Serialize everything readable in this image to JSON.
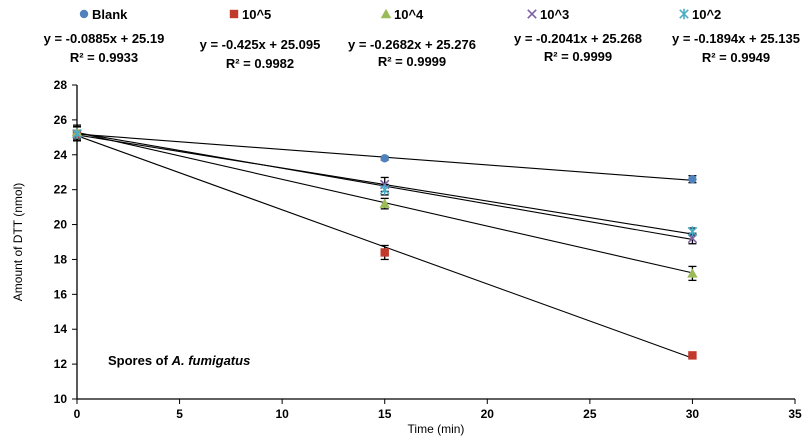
{
  "chart_data": {
    "type": "scatter",
    "xlabel": "Time (min)",
    "ylabel": "Amount of DTT (nmol)",
    "xlim": [
      0,
      35
    ],
    "ylim": [
      10,
      28
    ],
    "xticks": [
      "0",
      "5",
      "10",
      "15",
      "20",
      "25",
      "30",
      "35"
    ],
    "yticks": [
      "10",
      "12",
      "14",
      "16",
      "18",
      "20",
      "22",
      "24",
      "26",
      "28"
    ],
    "grid": false,
    "legend_position": "top",
    "annotation": {
      "prefix": "Spores of ",
      "italic": "A. fumigatus"
    },
    "series": [
      {
        "name": "Blank",
        "color": "#4f81bd",
        "marker": "circle",
        "x": [
          0,
          15,
          30
        ],
        "y": [
          25.2,
          23.8,
          22.6
        ],
        "err": [
          0.4,
          0.1,
          0.2
        ],
        "fit": {
          "slope": -0.0885,
          "intercept": 25.19
        },
        "equation": "y = -0.0885x + 25.19",
        "r2": "R² = 0.9933"
      },
      {
        "name": "10^5",
        "color": "#c0392b",
        "marker": "square",
        "x": [
          0,
          15,
          30
        ],
        "y": [
          25.2,
          18.4,
          12.5
        ],
        "err": [
          0.4,
          0.4,
          0.1
        ],
        "fit": {
          "slope": -0.425,
          "intercept": 25.095
        },
        "equation": "y = -0.425x + 25.095",
        "r2": "R² = 0.9982"
      },
      {
        "name": "10^4",
        "color": "#9bbb59",
        "marker": "triangle",
        "x": [
          0,
          15,
          30
        ],
        "y": [
          25.3,
          21.2,
          17.2
        ],
        "err": [
          0.4,
          0.3,
          0.4
        ],
        "fit": {
          "slope": -0.2682,
          "intercept": 25.276
        },
        "equation": "y = -0.2682x + 25.276",
        "r2": "R² = 0.9999"
      },
      {
        "name": "10^3",
        "color": "#7f5fa8",
        "marker": "x",
        "x": [
          0,
          15,
          30
        ],
        "y": [
          25.2,
          22.3,
          19.2
        ],
        "err": [
          0.4,
          0.4,
          0.3
        ],
        "fit": {
          "slope": -0.2041,
          "intercept": 25.268
        },
        "equation": "y = -0.2041x + 25.268",
        "r2": "R² = 0.9999"
      },
      {
        "name": "10^2",
        "color": "#4bacc6",
        "marker": "star",
        "x": [
          0,
          15,
          30
        ],
        "y": [
          25.2,
          22.0,
          19.6
        ],
        "err": [
          0.4,
          0.3,
          0.2
        ],
        "fit": {
          "slope": -0.1894,
          "intercept": 25.135
        },
        "equation": "y = -0.1894x + 25.135",
        "r2": "R² = 0.9949"
      }
    ]
  }
}
